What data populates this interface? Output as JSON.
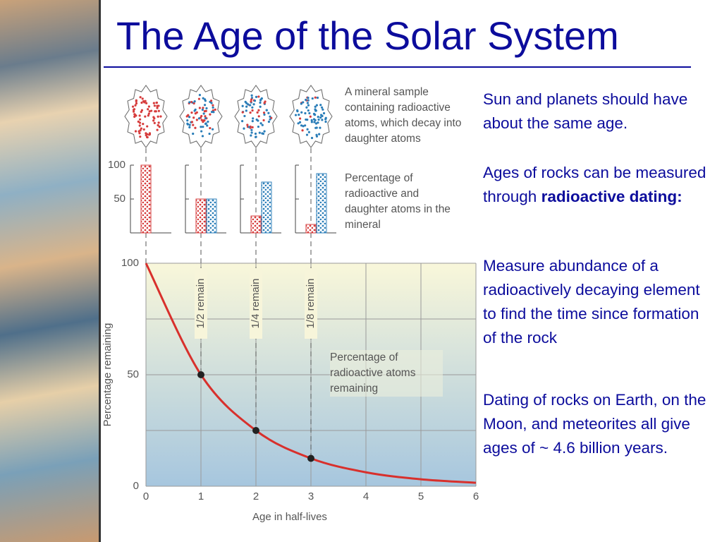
{
  "title": "The Age of the Solar System",
  "bullets": [
    {
      "text": "Sun and planets should have about the same age."
    },
    {
      "text": "Ages of rocks can be measured through",
      "bold": "radioactive dating:"
    },
    {
      "text": "Measure abundance of a radioactively decaying element to find the time since formation of the rock"
    },
    {
      "text": "Dating of rocks on Earth, on the Moon, and meteorites all give ages of ~ 4.6 billion years."
    }
  ],
  "chart_data": [
    {
      "type": "bar",
      "annotations": [
        "A mineral sample containing radioactive atoms, which decay into daughter atoms",
        "Percentage of radioactive and daughter atoms in the mineral"
      ],
      "categories": [
        null,
        null,
        null,
        null
      ],
      "series": [
        {
          "color": "#d63c3c",
          "values": [
            100,
            50,
            25,
            12.5
          ]
        },
        {
          "color": "#2a7db8",
          "values": [
            0,
            50,
            75,
            87.5
          ]
        }
      ],
      "ylim": [
        0,
        100
      ],
      "yticks": [
        50,
        100
      ]
    },
    {
      "type": "line",
      "xlabel": "Age in half-lives",
      "ylabel": "Percentage remaining",
      "annotation": "Percentage of radioactive atoms remaining",
      "x": [
        0,
        1,
        2,
        3,
        4,
        5,
        6
      ],
      "series": [
        {
          "color": "#d8302c",
          "values": [
            100,
            50,
            25,
            12.5,
            6.25,
            3.125,
            1.5625
          ]
        },
        {
          "type": "scatter",
          "color": "#222222",
          "x": [
            1,
            2,
            3
          ],
          "values": [
            50,
            25,
            12.5
          ]
        }
      ],
      "markers_labels": [
        {
          "x": 1,
          "text": "1/2 remain"
        },
        {
          "x": 2,
          "text": "1/4 remain"
        },
        {
          "x": 3,
          "text": "1/8 remain"
        }
      ],
      "xlim": [
        0,
        6
      ],
      "ylim": [
        0,
        100
      ],
      "xticks": [
        0,
        1,
        2,
        3,
        4,
        5,
        6
      ],
      "yticks": [
        0,
        50,
        100
      ],
      "grid_yticks": [
        0,
        25,
        50,
        75,
        100
      ],
      "grid": true
    }
  ]
}
